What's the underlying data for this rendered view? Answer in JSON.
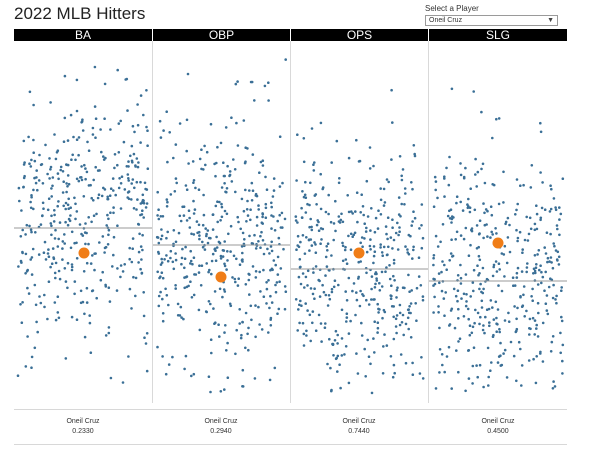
{
  "title": "2022 MLB Hitters",
  "filter": {
    "label": "Select a Player",
    "selected": "Oneil Cruz"
  },
  "colors": {
    "dot": "#3a6f96",
    "highlight": "#f07d17",
    "avg_line": "#9a9a9a",
    "header_bg": "#000000"
  },
  "chart_data": [
    {
      "type": "scatter",
      "title": "BA",
      "selected_player": "Oneil Cruz",
      "selected_value": "0.2330"
    },
    {
      "type": "scatter",
      "title": "OBP",
      "selected_player": "Oneil Cruz",
      "selected_value": "0.2940"
    },
    {
      "type": "scatter",
      "title": "OPS",
      "selected_player": "Oneil Cruz",
      "selected_value": "0.7440"
    },
    {
      "type": "scatter",
      "title": "SLG",
      "selected_player": "Oneil Cruz",
      "selected_value": "0.4500"
    }
  ]
}
